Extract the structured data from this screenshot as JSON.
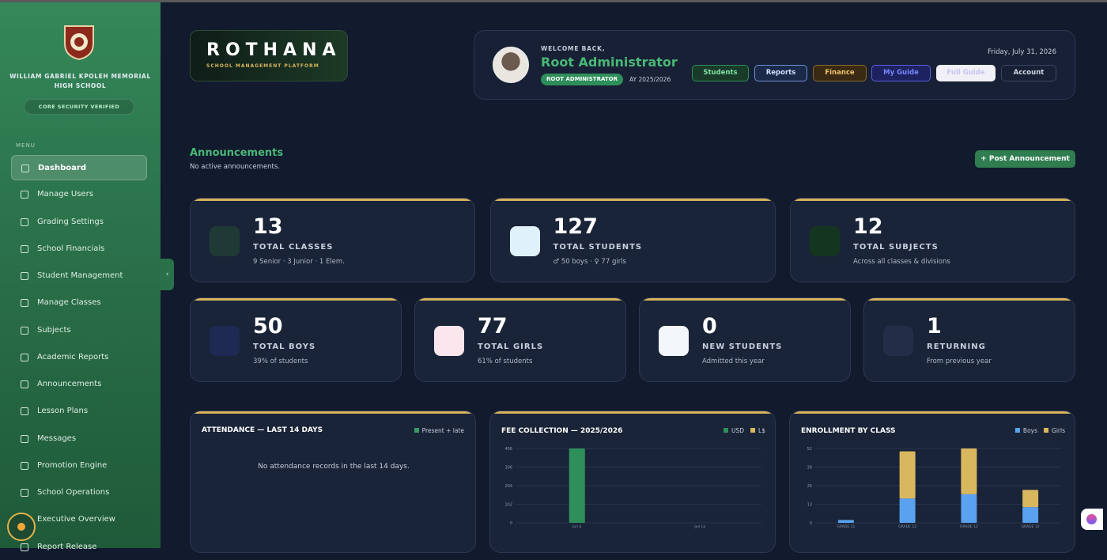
{
  "sidebar": {
    "school_name": "WILLIAM GABRIEL KPOLEH MEMORIAL HIGH SCHOOL",
    "security": "CORE SECURITY VERIFIED",
    "menu_label": "MENU",
    "menu": [
      "Dashboard",
      "Manage Users",
      "Grading Settings",
      "School Financials",
      "Student Management",
      "Manage Classes",
      "Subjects",
      "Academic Reports",
      "Announcements",
      "Lesson Plans",
      "Messages",
      "Promotion Engine",
      "School Operations",
      "Executive Overview",
      "Report Release"
    ],
    "active": 0
  },
  "header": {
    "brand": "ROTHANA",
    "tagline": "SCHOOL MANAGEMENT PLATFORM",
    "welcome": "WELCOME BACK,",
    "user": "Root Administrator",
    "role": "ROOT ADMINISTRATOR",
    "year": "AY 2025/2026",
    "date": "Friday, July 31, 2026",
    "buttons": [
      "Students",
      "Reports",
      "Finance",
      "My Guide",
      "Full Guide",
      "Account"
    ]
  },
  "announcements": {
    "title": "Announcements",
    "empty": "No active announcements.",
    "button": "Post Announcement"
  },
  "stats": [
    {
      "value": 13,
      "label": "TOTAL CLASSES",
      "sub": "9 Senior · 3 Junior · 1 Elem."
    },
    {
      "value": 127,
      "label": "TOTAL STUDENTS",
      "sub": "♂ 50 boys · ♀ 77 girls"
    },
    {
      "value": 12,
      "label": "TOTAL SUBJECTS",
      "sub": "Across all classes & divisions"
    },
    {
      "value": 50,
      "label": "TOTAL BOYS",
      "sub": "39% of students"
    },
    {
      "value": 77,
      "label": "TOTAL GIRLS",
      "sub": "61% of students"
    },
    {
      "value": 0,
      "label": "NEW STUDENTS",
      "sub": "Admitted this year"
    },
    {
      "value": 1,
      "label": "RETURNING",
      "sub": "From previous year"
    }
  ],
  "attendance": {
    "title": "ATTENDANCE — LAST 14 DAYS",
    "legend": "Present + late",
    "color": "#3a9a68",
    "empty": "No attendance records in the last 14 days."
  },
  "charts": [
    {
      "type": "bar",
      "title": "FEE COLLECTION — 2025/2026",
      "categories": [
        "Jun $",
        "Jun L$"
      ],
      "series": [
        {
          "name": "USD",
          "color": "#2f8f5b",
          "values": [
            408,
            null
          ]
        },
        {
          "name": "L$",
          "color": "#d9b75e",
          "values": [
            null,
            0
          ]
        }
      ],
      "ylim": [
        0,
        408
      ],
      "yticks": [
        0,
        102,
        204,
        306,
        408
      ],
      "grid": true
    },
    {
      "type": "stacked_bar",
      "title": "ENROLLMENT BY CLASS",
      "categories": [
        "GRADE 11",
        "GRADE 12",
        "GRADE 12",
        "GRADE 12"
      ],
      "series": [
        {
          "name": "Boys",
          "color": "#5aa2f0",
          "values": [
            2,
            17,
            20,
            11
          ]
        },
        {
          "name": "Girls",
          "color": "#d9b75e",
          "values": [
            0,
            33,
            32,
            12
          ]
        }
      ],
      "ylim": [
        0,
        52
      ],
      "yticks": [
        0,
        13,
        26,
        39,
        52
      ],
      "grid": true
    }
  ]
}
